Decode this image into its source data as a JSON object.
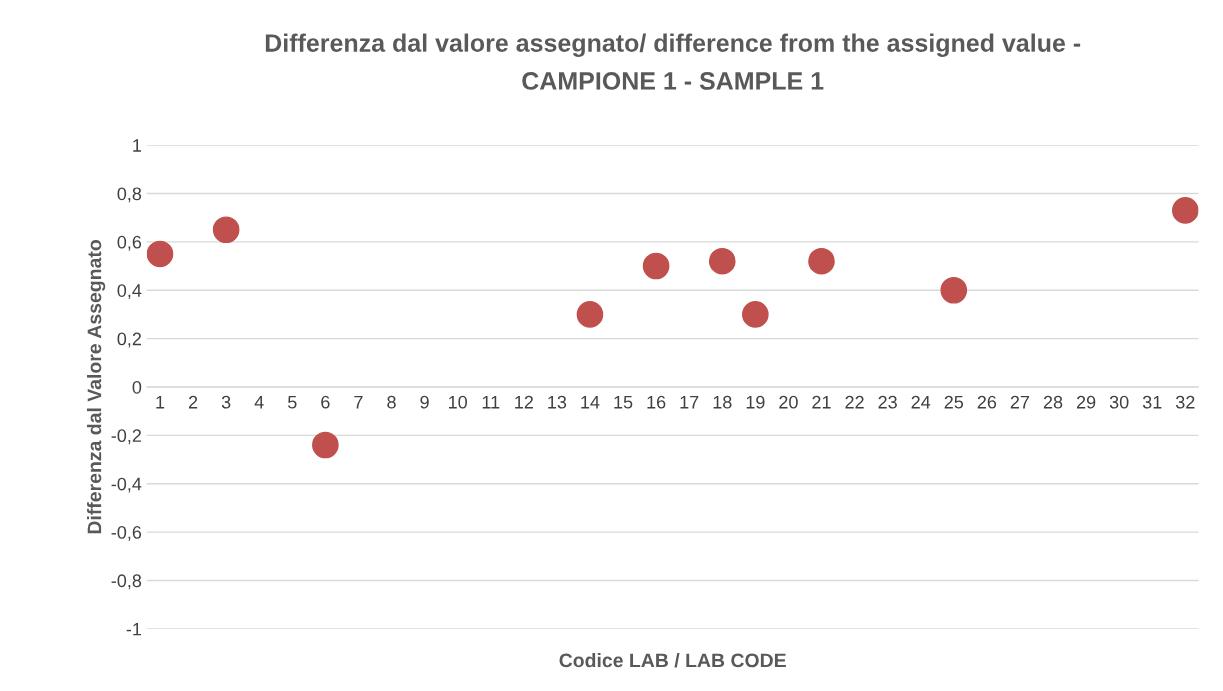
{
  "chart_data": {
    "type": "scatter",
    "title": "Differenza dal valore assegnato/ difference from the assigned value -\nCAMPIONE 1 - SAMPLE 1",
    "xlabel": "Codice LAB / LAB CODE",
    "ylabel": "Differenza dal Valore Assegnato",
    "categories": [
      "1",
      "2",
      "3",
      "4",
      "5",
      "6",
      "7",
      "8",
      "9",
      "10",
      "11",
      "12",
      "13",
      "14",
      "15",
      "16",
      "17",
      "18",
      "19",
      "20",
      "21",
      "22",
      "23",
      "24",
      "25",
      "26",
      "27",
      "28",
      "29",
      "30",
      "31",
      "32"
    ],
    "series": [
      {
        "color": "#c0504d",
        "values": [
          0.55,
          null,
          0.65,
          null,
          null,
          -0.24,
          null,
          null,
          null,
          null,
          null,
          null,
          null,
          0.3,
          null,
          0.5,
          null,
          0.52,
          0.3,
          null,
          0.52,
          null,
          null,
          null,
          0.4,
          null,
          null,
          null,
          null,
          null,
          null,
          0.73
        ]
      }
    ],
    "ylim": [
      -1,
      1
    ],
    "yticks": [
      {
        "value": -1,
        "label": "-1"
      },
      {
        "value": -0.8,
        "label": "-0,8"
      },
      {
        "value": -0.6,
        "label": "-0,6"
      },
      {
        "value": -0.4,
        "label": "-0,4"
      },
      {
        "value": -0.2,
        "label": "-0,2"
      },
      {
        "value": 0,
        "label": "0"
      },
      {
        "value": 0.2,
        "label": "0,2"
      },
      {
        "value": 0.4,
        "label": "0,4"
      },
      {
        "value": 0.6,
        "label": "0,6"
      },
      {
        "value": 0.8,
        "label": "0,8"
      },
      {
        "value": 1,
        "label": "1"
      }
    ],
    "grid": "y",
    "marker": "circle"
  }
}
